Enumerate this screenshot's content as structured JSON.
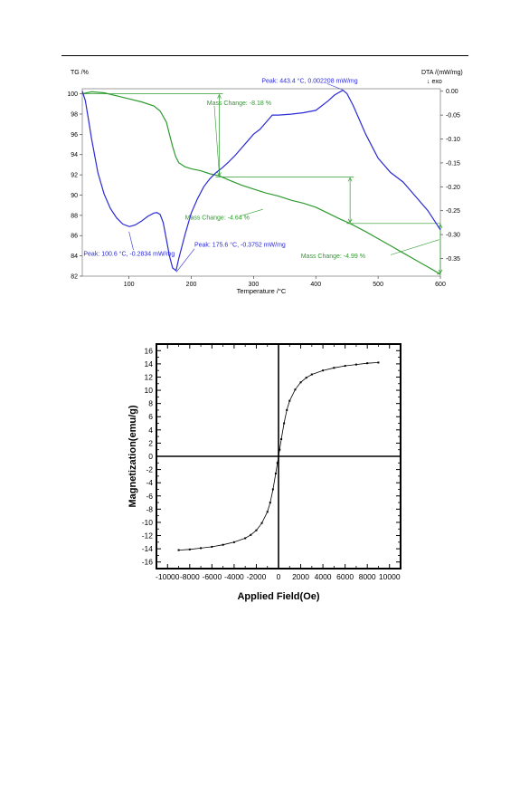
{
  "chart_data": [
    {
      "type": "line",
      "xlabel": "Temperature /°C",
      "ylabel": "TG /%",
      "y2label": "DTA /(mW/mg)",
      "y2arrow": "↓ exo",
      "xlim": [
        25,
        600
      ],
      "ylim": [
        82,
        100.5
      ],
      "y2lim": [
        -0.387,
        0.0052
      ],
      "xticks": [
        100,
        200,
        300,
        400,
        500,
        600
      ],
      "yticks": [
        82,
        84,
        86,
        88,
        90,
        92,
        94,
        96,
        98,
        100
      ],
      "y2ticks": [
        0.0,
        -0.05,
        -0.1,
        -0.15,
        -0.2,
        -0.25,
        -0.3,
        -0.35
      ],
      "y2ticklabels": [
        "0.00",
        "-0.05",
        "-0.10",
        "-0.15",
        "-0.20",
        "-0.25",
        "-0.30",
        "-0.35"
      ],
      "colors": {
        "tg": "#2e9b2e",
        "dta": "#2a2ad6"
      },
      "series": [
        {
          "id": "tg",
          "axis": "left",
          "x": [
            25,
            40,
            60,
            80,
            100,
            120,
            140,
            150,
            160,
            165,
            170,
            175,
            180,
            190,
            200,
            215,
            230,
            245,
            260,
            280,
            300,
            320,
            340,
            360,
            380,
            400,
            420,
            440,
            455,
            480,
            500,
            520,
            540,
            560,
            580,
            600
          ],
          "y": [
            100.0,
            100.2,
            100.1,
            99.8,
            99.5,
            99.2,
            98.8,
            98.3,
            97.2,
            96.0,
            94.8,
            93.8,
            93.2,
            92.8,
            92.6,
            92.4,
            92.1,
            91.9,
            91.5,
            91.0,
            90.6,
            90.2,
            89.9,
            89.5,
            89.2,
            88.8,
            88.2,
            87.6,
            87.2,
            86.4,
            85.7,
            85.0,
            84.3,
            83.6,
            82.9,
            82.2
          ]
        },
        {
          "id": "dta",
          "axis": "right",
          "x": [
            25,
            30,
            35,
            40,
            50,
            60,
            70,
            80,
            90,
            100.6,
            110,
            120,
            130,
            140,
            145,
            150,
            155,
            160,
            165,
            170,
            175.6,
            180,
            190,
            200,
            210,
            220,
            230,
            240,
            250,
            260,
            270,
            280,
            290,
            300,
            310,
            320,
            330,
            340,
            360,
            380,
            400,
            420,
            430,
            443.4,
            450,
            460,
            470,
            480,
            500,
            520,
            540,
            560,
            580,
            600
          ],
          "y": [
            0.0,
            -0.02,
            -0.06,
            -0.1,
            -0.17,
            -0.215,
            -0.245,
            -0.265,
            -0.278,
            -0.2834,
            -0.28,
            -0.272,
            -0.262,
            -0.255,
            -0.254,
            -0.258,
            -0.275,
            -0.31,
            -0.345,
            -0.37,
            -0.3752,
            -0.35,
            -0.3,
            -0.255,
            -0.225,
            -0.2,
            -0.183,
            -0.17,
            -0.16,
            -0.148,
            -0.135,
            -0.12,
            -0.105,
            -0.09,
            -0.08,
            -0.065,
            -0.05,
            -0.05,
            -0.048,
            -0.045,
            -0.04,
            -0.02,
            -0.008,
            0.002208,
            -0.005,
            -0.03,
            -0.06,
            -0.09,
            -0.14,
            -0.17,
            -0.19,
            -0.22,
            -0.25,
            -0.29
          ]
        }
      ],
      "annotations": [
        {
          "text": "Mass Change: -8.18 %",
          "color": "green",
          "x": 225,
          "y": 98.9
        },
        {
          "text": "Mass Change: -4.64 %",
          "color": "green",
          "x": 190,
          "y": 87.6
        },
        {
          "text": "Mass Change: -4.99 %",
          "color": "green",
          "x": 376,
          "y": 83.8
        },
        {
          "text": "Peak: 443.4 °C, 0.002208 mW/mg",
          "color": "blue",
          "x": 313,
          "y": 101.1
        },
        {
          "text": "Peak: 100.6 °C, -0.2834 mW/mg",
          "color": "blue",
          "x": 27,
          "y": 84.0
        },
        {
          "text": "Peak: 175.6 °C, -0.3752 mW/mg",
          "color": "blue",
          "x": 205,
          "y": 84.9
        }
      ],
      "mass_steps": [
        {
          "x_from": 25,
          "x_to": 245,
          "y_top": 100.0,
          "y_bottom": 91.8
        },
        {
          "x_from": 245,
          "x_to": 455,
          "y_top": 91.8,
          "y_bottom": 87.2
        },
        {
          "x_from": 455,
          "x_to": 600,
          "y_top": 87.2,
          "y_bottom": 82.2
        }
      ],
      "legend": "none"
    },
    {
      "type": "line",
      "xlabel": "Applied Field(Oe)",
      "ylabel": "Magnetization(emu/g)",
      "xlim": [
        -11000,
        11000
      ],
      "ylim": [
        -17,
        17
      ],
      "xticks": [
        -10000,
        -8000,
        -6000,
        -4000,
        -2000,
        0,
        2000,
        4000,
        6000,
        8000,
        10000
      ],
      "yticks": [
        -16,
        -14,
        -12,
        -10,
        -8,
        -6,
        -4,
        -2,
        0,
        2,
        4,
        6,
        8,
        10,
        12,
        14,
        16
      ],
      "series": [
        {
          "id": "m-h",
          "x": [
            -9000,
            -8000,
            -7000,
            -6000,
            -5000,
            -4000,
            -3000,
            -2500,
            -2000,
            -1500,
            -1000,
            -750,
            -500,
            -250,
            -100,
            0,
            100,
            250,
            500,
            750,
            1000,
            1500,
            2000,
            2500,
            3000,
            4000,
            5000,
            6000,
            7000,
            8000,
            9000
          ],
          "y": [
            -14.2,
            -14.1,
            -13.9,
            -13.7,
            -13.4,
            -13.0,
            -12.4,
            -11.9,
            -11.2,
            -10.1,
            -8.4,
            -7.0,
            -5.0,
            -2.6,
            -1.0,
            0.0,
            1.0,
            2.6,
            5.0,
            7.0,
            8.4,
            10.1,
            11.2,
            11.9,
            12.4,
            13.0,
            13.4,
            13.7,
            13.9,
            14.1,
            14.2
          ]
        }
      ],
      "grid": false,
      "legend": "none"
    }
  ]
}
